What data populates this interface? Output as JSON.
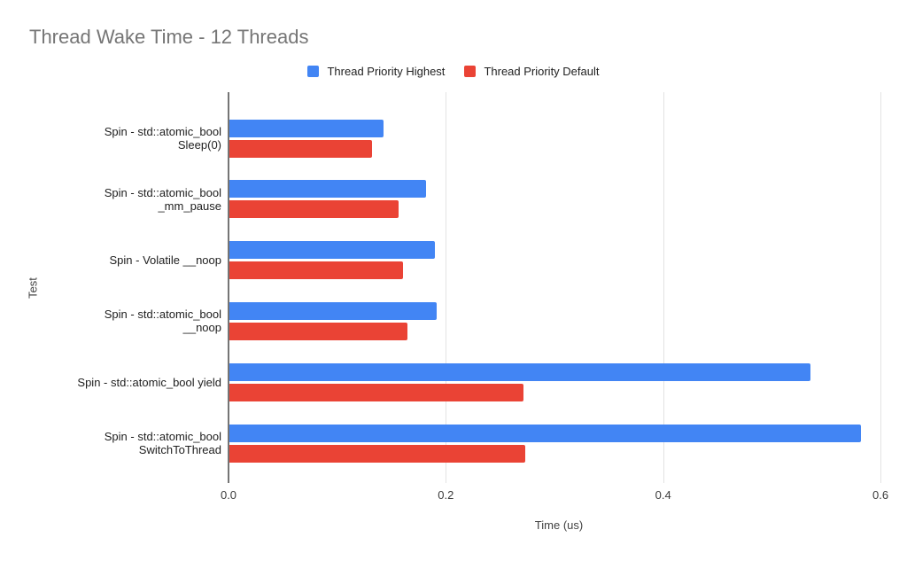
{
  "chart_data": {
    "type": "bar",
    "orientation": "horizontal",
    "title": "Thread Wake Time - 12 Threads",
    "xlabel": "Time (us)",
    "ylabel": "Test",
    "xlim": [
      0,
      0.6
    ],
    "xticks": [
      {
        "value": 0.0,
        "label": "0.0"
      },
      {
        "value": 0.2,
        "label": "0.2"
      },
      {
        "value": 0.4,
        "label": "0.4"
      },
      {
        "value": 0.6,
        "label": "0.6"
      }
    ],
    "grid": true,
    "legend_position": "top",
    "categories": [
      "Spin - std::atomic_bool Sleep(0)",
      "Spin - std::atomic_bool _mm_pause",
      "Spin - Volatile __noop",
      "Spin - std::atomic_bool __noop",
      "Spin - std::atomic_bool yield",
      "Spin - std::atomic_bool SwitchToThread"
    ],
    "category_label_lines": [
      [
        "Spin - std::atomic_bool",
        "Sleep(0)"
      ],
      [
        "Spin - std::atomic_bool",
        "_mm_pause"
      ],
      [
        "Spin - Volatile __noop"
      ],
      [
        "Spin - std::atomic_bool",
        "__noop"
      ],
      [
        "Spin - std::atomic_bool yield"
      ],
      [
        "Spin - std::atomic_bool",
        "SwitchToThread"
      ]
    ],
    "series": [
      {
        "name": "Thread Priority Highest",
        "color": "#4285f4",
        "values": [
          0.142,
          0.181,
          0.189,
          0.191,
          0.535,
          0.581
        ]
      },
      {
        "name": "Thread Priority Default",
        "color": "#ea4335",
        "values": [
          0.131,
          0.156,
          0.16,
          0.164,
          0.271,
          0.272
        ]
      }
    ]
  },
  "colors": {
    "background": "#ffffff",
    "title_text": "#757575",
    "gridline": "#e3e3e3",
    "axis_line": "#757575",
    "category_text": "#212121",
    "tick_text": "#3c3c3c",
    "axis_title_text": "#424242"
  }
}
